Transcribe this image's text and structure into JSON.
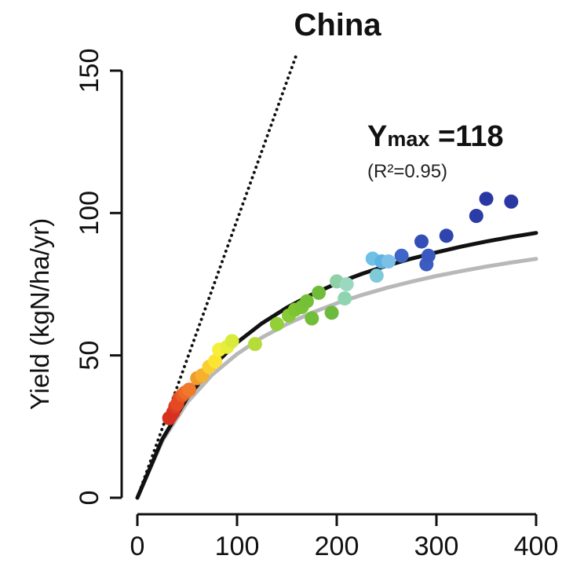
{
  "chart_data": {
    "type": "scatter",
    "title": "China",
    "xlabel": "",
    "ylabel": "Yield (kgN/ha/yr)",
    "xlim": [
      0,
      400
    ],
    "ylim": [
      0,
      150
    ],
    "x_ticks": [
      "0",
      "100",
      "200",
      "300",
      "400"
    ],
    "y_ticks": [
      "0",
      "50",
      "100",
      "150"
    ],
    "grid": false,
    "annotation": {
      "ymax_prefix": "Y",
      "ymax_sub": "max",
      "ymax_value": " =118",
      "r2": "(R²=0.95)"
    },
    "curves": [
      {
        "style": "dotted",
        "color": "#111111",
        "x": [
          0,
          160
        ],
        "y": [
          0,
          156
        ]
      },
      {
        "style": "solid",
        "color": "#111111",
        "x": [
          0,
          25,
          50,
          75,
          100,
          125,
          150,
          175,
          200,
          225,
          250,
          275,
          300,
          325,
          350,
          375,
          400
        ],
        "y": [
          0,
          20.6,
          35.1,
          46.0,
          54.5,
          61.3,
          66.8,
          71.4,
          75.3,
          78.6,
          81.5,
          84.0,
          86.2,
          88.2,
          90.0,
          91.6,
          93.0
        ]
      },
      {
        "style": "solid",
        "color": "#b8b8b8",
        "x": [
          0,
          25,
          50,
          75,
          100,
          125,
          150,
          175,
          200,
          225,
          250,
          275,
          300,
          325,
          350,
          375,
          400
        ],
        "y": [
          0,
          20.0,
          33.5,
          43.2,
          50.5,
          56.3,
          61.0,
          65.0,
          68.3,
          71.2,
          73.7,
          75.9,
          77.9,
          79.6,
          81.2,
          82.6,
          83.9
        ]
      }
    ],
    "points": [
      {
        "x": 32,
        "y": 28,
        "color": "#d7301f"
      },
      {
        "x": 36,
        "y": 30,
        "color": "#d7301f"
      },
      {
        "x": 38,
        "y": 32,
        "color": "#de3b22"
      },
      {
        "x": 40,
        "y": 33,
        "color": "#e34a24"
      },
      {
        "x": 42,
        "y": 35,
        "color": "#e34a24"
      },
      {
        "x": 45,
        "y": 36,
        "color": "#ea5a26"
      },
      {
        "x": 48,
        "y": 37,
        "color": "#ee6a28"
      },
      {
        "x": 52,
        "y": 38,
        "color": "#f07a2a"
      },
      {
        "x": 60,
        "y": 42,
        "color": "#f39a2c"
      },
      {
        "x": 65,
        "y": 43,
        "color": "#f6b02e"
      },
      {
        "x": 72,
        "y": 46,
        "color": "#f8d030"
      },
      {
        "x": 78,
        "y": 48,
        "color": "#fbe532"
      },
      {
        "x": 82,
        "y": 52,
        "color": "#f5ef3a"
      },
      {
        "x": 90,
        "y": 53,
        "color": "#e6ee3a"
      },
      {
        "x": 95,
        "y": 55,
        "color": "#d8ea3c"
      },
      {
        "x": 118,
        "y": 54,
        "color": "#b6dc3a"
      },
      {
        "x": 140,
        "y": 61,
        "color": "#93cf36"
      },
      {
        "x": 152,
        "y": 64,
        "color": "#86ca35"
      },
      {
        "x": 158,
        "y": 66,
        "color": "#7ec534"
      },
      {
        "x": 165,
        "y": 67,
        "color": "#79c234"
      },
      {
        "x": 170,
        "y": 69,
        "color": "#74c036"
      },
      {
        "x": 175,
        "y": 63,
        "color": "#72be38"
      },
      {
        "x": 182,
        "y": 72,
        "color": "#6fbc3a"
      },
      {
        "x": 195,
        "y": 65,
        "color": "#6cba3e"
      },
      {
        "x": 200,
        "y": 76,
        "color": "#8fd0a8"
      },
      {
        "x": 208,
        "y": 70,
        "color": "#8fd4b0"
      },
      {
        "x": 210,
        "y": 75,
        "color": "#9ad8c2"
      },
      {
        "x": 236,
        "y": 84,
        "color": "#6fc0e6"
      },
      {
        "x": 240,
        "y": 78,
        "color": "#7fcad8"
      },
      {
        "x": 245,
        "y": 83,
        "color": "#5fb3e2"
      },
      {
        "x": 252,
        "y": 83,
        "color": "#7bc0e8"
      },
      {
        "x": 265,
        "y": 85,
        "color": "#3d66c8"
      },
      {
        "x": 285,
        "y": 90,
        "color": "#3450b8"
      },
      {
        "x": 290,
        "y": 82,
        "color": "#3b5cc0"
      },
      {
        "x": 292,
        "y": 85,
        "color": "#3a5ac0"
      },
      {
        "x": 310,
        "y": 92,
        "color": "#2f45ae"
      },
      {
        "x": 340,
        "y": 99,
        "color": "#2b3ca6"
      },
      {
        "x": 350,
        "y": 105,
        "color": "#2a38a4"
      },
      {
        "x": 375,
        "y": 104,
        "color": "#2a38a4"
      }
    ]
  }
}
